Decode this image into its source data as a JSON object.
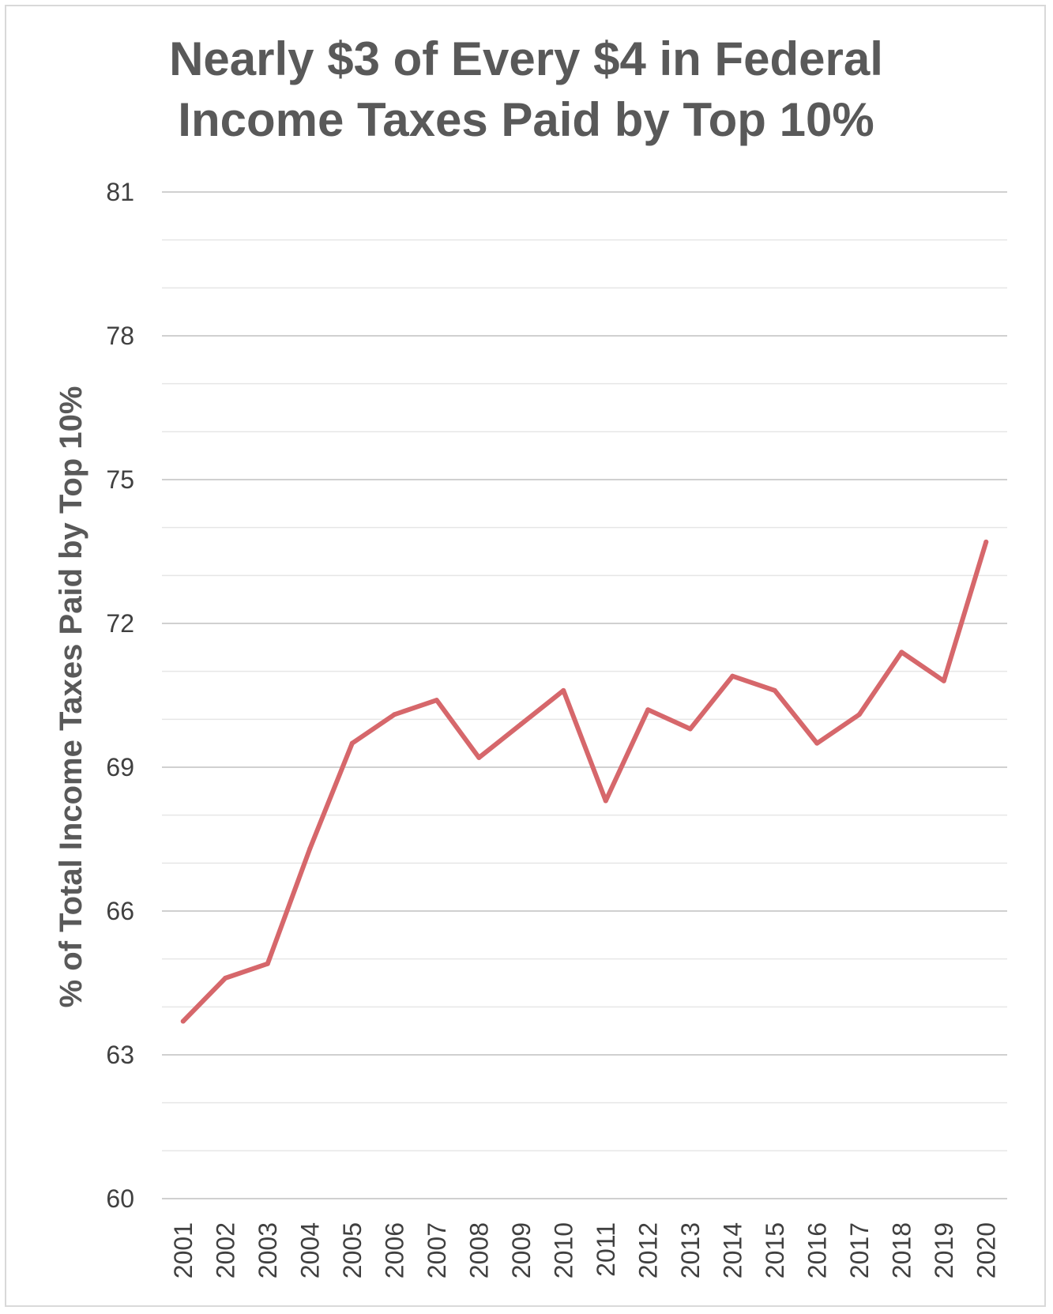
{
  "chart_data": {
    "type": "line",
    "title_lines": [
      "Nearly $3 of Every $4 in Federal",
      "Income Taxes Paid by Top 10%"
    ],
    "xlabel": "",
    "ylabel": "% of Total Income Taxes Paid by Top 10%",
    "ylim": [
      60,
      81
    ],
    "yticks": [
      60,
      63,
      66,
      69,
      72,
      75,
      78,
      81
    ],
    "minor_step": 1,
    "grid": true,
    "legend": "none",
    "line_color": "#d6676b",
    "x": [
      "2001",
      "2002",
      "2003",
      "2004",
      "2005",
      "2006",
      "2007",
      "2008",
      "2009",
      "2010",
      "2011",
      "2012",
      "2013",
      "2014",
      "2015",
      "2016",
      "2017",
      "2018",
      "2019",
      "2020"
    ],
    "series": [
      {
        "values": [
          63.7,
          64.6,
          64.9,
          67.3,
          69.5,
          70.1,
          70.4,
          69.2,
          69.9,
          70.6,
          68.3,
          70.2,
          69.8,
          70.9,
          70.6,
          69.5,
          70.1,
          71.4,
          70.8,
          73.7
        ]
      }
    ]
  }
}
